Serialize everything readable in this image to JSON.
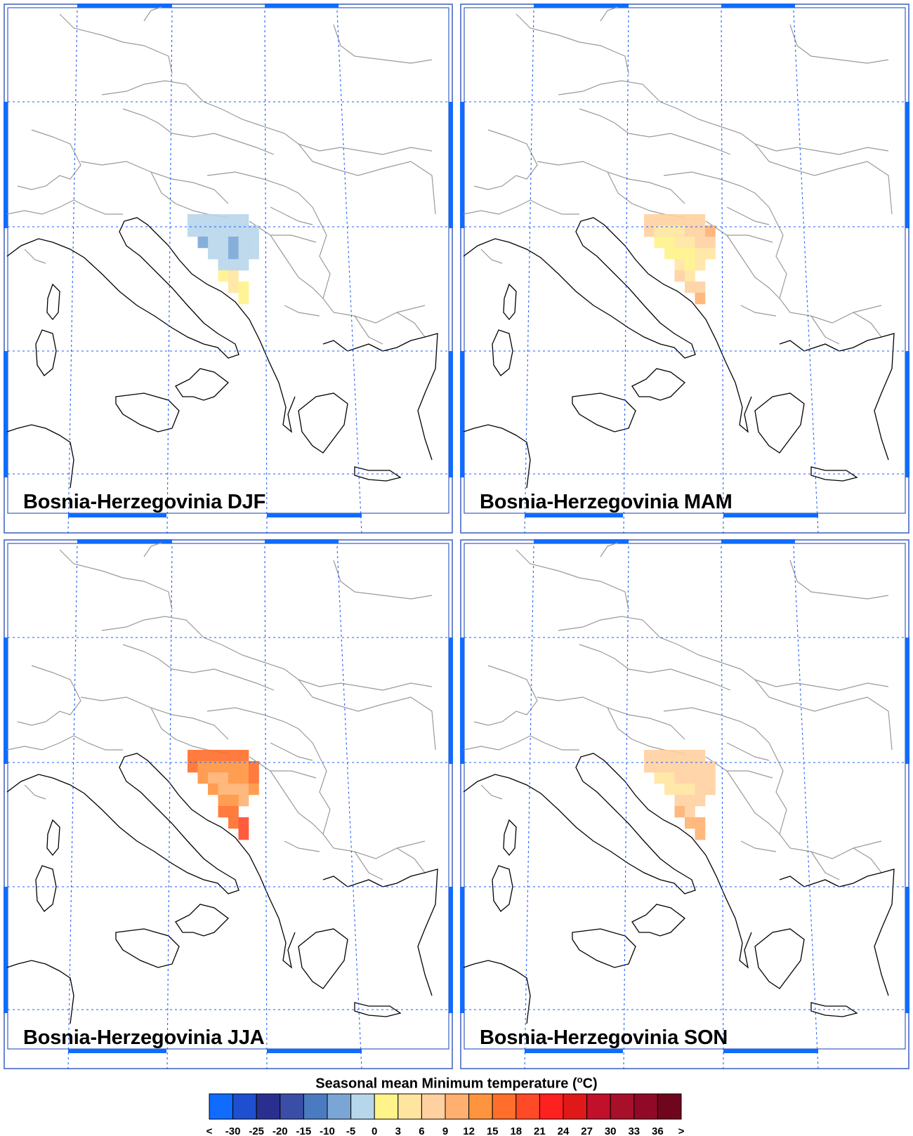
{
  "panels": [
    {
      "label": "Bosnia-Herzegovinia DJF",
      "season": "DJF"
    },
    {
      "label": "Bosnia-Herzegovinia MAM",
      "season": "MAM"
    },
    {
      "label": "Bosnia-Herzegovinia JJA",
      "season": "JJA"
    },
    {
      "label": "Bosnia-Herzegovinia SON",
      "season": "SON"
    }
  ],
  "colorbar": {
    "title_prefix": "Seasonal mean Minimum temperature (",
    "title_unit_sup": "o",
    "title_suffix": "C)",
    "tick_labels": [
      "<",
      "-30",
      "-25",
      "-20",
      "-15",
      "-10",
      "-5",
      "0",
      "3",
      "6",
      "9",
      "12",
      "15",
      "18",
      "21",
      "24",
      "27",
      "30",
      "33",
      "36",
      ">"
    ],
    "colors": [
      "#0f6cff",
      "#1e4fcf",
      "#2a2f8f",
      "#3a4ea8",
      "#4a7bc0",
      "#7aa6d6",
      "#b7d6ea",
      "#fff38a",
      "#ffe5a0",
      "#ffd0a0",
      "#ffb070",
      "#ff9440",
      "#ff6e2a",
      "#ff4a28",
      "#ff2020",
      "#e01818",
      "#c0102a",
      "#a8102a",
      "#900a28",
      "#70061e"
    ]
  },
  "grid": {
    "color": "#1a5cff",
    "frame_color": "#0f6cff"
  },
  "temperature_cells": {
    "DJF": [
      {
        "c": 0,
        "r": 0,
        "v": -5
      },
      {
        "c": 1,
        "r": 0,
        "v": -5
      },
      {
        "c": 2,
        "r": 0,
        "v": -5
      },
      {
        "c": 3,
        "r": 0,
        "v": -5
      },
      {
        "c": 4,
        "r": 0,
        "v": -5
      },
      {
        "c": 5,
        "r": 0,
        "v": -5
      },
      {
        "c": 0,
        "r": 1,
        "v": -5
      },
      {
        "c": 1,
        "r": 1,
        "v": -5
      },
      {
        "c": 2,
        "r": 1,
        "v": -5
      },
      {
        "c": 3,
        "r": 1,
        "v": -5
      },
      {
        "c": 4,
        "r": 1,
        "v": -5
      },
      {
        "c": 5,
        "r": 1,
        "v": -5
      },
      {
        "c": 6,
        "r": 1,
        "v": -5
      },
      {
        "c": 1,
        "r": 2,
        "v": -10
      },
      {
        "c": 2,
        "r": 2,
        "v": -5
      },
      {
        "c": 3,
        "r": 2,
        "v": -5
      },
      {
        "c": 4,
        "r": 2,
        "v": -10
      },
      {
        "c": 5,
        "r": 2,
        "v": -5
      },
      {
        "c": 6,
        "r": 2,
        "v": -5
      },
      {
        "c": 2,
        "r": 3,
        "v": -5
      },
      {
        "c": 3,
        "r": 3,
        "v": -5
      },
      {
        "c": 4,
        "r": 3,
        "v": -10
      },
      {
        "c": 5,
        "r": 3,
        "v": -5
      },
      {
        "c": 6,
        "r": 3,
        "v": -5
      },
      {
        "c": 3,
        "r": 4,
        "v": -5
      },
      {
        "c": 4,
        "r": 4,
        "v": -5
      },
      {
        "c": 5,
        "r": 4,
        "v": -5
      },
      {
        "c": 3,
        "r": 5,
        "v": 0
      },
      {
        "c": 4,
        "r": 5,
        "v": 3
      },
      {
        "c": 4,
        "r": 6,
        "v": 3
      },
      {
        "c": 5,
        "r": 6,
        "v": 0
      },
      {
        "c": 5,
        "r": 7,
        "v": 0
      }
    ],
    "MAM": [
      {
        "c": 0,
        "r": 0,
        "v": 6
      },
      {
        "c": 1,
        "r": 0,
        "v": 6
      },
      {
        "c": 2,
        "r": 0,
        "v": 6
      },
      {
        "c": 3,
        "r": 0,
        "v": 6
      },
      {
        "c": 4,
        "r": 0,
        "v": 6
      },
      {
        "c": 5,
        "r": 0,
        "v": 6
      },
      {
        "c": 0,
        "r": 1,
        "v": 6
      },
      {
        "c": 1,
        "r": 1,
        "v": 3
      },
      {
        "c": 2,
        "r": 1,
        "v": 3
      },
      {
        "c": 3,
        "r": 1,
        "v": 3
      },
      {
        "c": 4,
        "r": 1,
        "v": 6
      },
      {
        "c": 5,
        "r": 1,
        "v": 6
      },
      {
        "c": 6,
        "r": 1,
        "v": 9
      },
      {
        "c": 1,
        "r": 2,
        "v": 0
      },
      {
        "c": 2,
        "r": 2,
        "v": 0
      },
      {
        "c": 3,
        "r": 2,
        "v": 3
      },
      {
        "c": 4,
        "r": 2,
        "v": 3
      },
      {
        "c": 5,
        "r": 2,
        "v": 6
      },
      {
        "c": 6,
        "r": 2,
        "v": 6
      },
      {
        "c": 2,
        "r": 3,
        "v": 0
      },
      {
        "c": 3,
        "r": 3,
        "v": 0
      },
      {
        "c": 4,
        "r": 3,
        "v": 0
      },
      {
        "c": 5,
        "r": 3,
        "v": 3
      },
      {
        "c": 6,
        "r": 3,
        "v": 3
      },
      {
        "c": 3,
        "r": 4,
        "v": 3
      },
      {
        "c": 4,
        "r": 4,
        "v": 0
      },
      {
        "c": 5,
        "r": 4,
        "v": 3
      },
      {
        "c": 3,
        "r": 5,
        "v": 6
      },
      {
        "c": 4,
        "r": 5,
        "v": 3
      },
      {
        "c": 4,
        "r": 6,
        "v": 6
      },
      {
        "c": 5,
        "r": 6,
        "v": 6
      },
      {
        "c": 5,
        "r": 7,
        "v": 9
      }
    ],
    "JJA": [
      {
        "c": 0,
        "r": 0,
        "v": 15
      },
      {
        "c": 1,
        "r": 0,
        "v": 15
      },
      {
        "c": 2,
        "r": 0,
        "v": 15
      },
      {
        "c": 3,
        "r": 0,
        "v": 15
      },
      {
        "c": 4,
        "r": 0,
        "v": 15
      },
      {
        "c": 5,
        "r": 0,
        "v": 15
      },
      {
        "c": 0,
        "r": 1,
        "v": 15
      },
      {
        "c": 1,
        "r": 1,
        "v": 12
      },
      {
        "c": 2,
        "r": 1,
        "v": 12
      },
      {
        "c": 3,
        "r": 1,
        "v": 12
      },
      {
        "c": 4,
        "r": 1,
        "v": 12
      },
      {
        "c": 5,
        "r": 1,
        "v": 12
      },
      {
        "c": 6,
        "r": 1,
        "v": 15
      },
      {
        "c": 1,
        "r": 2,
        "v": 12
      },
      {
        "c": 2,
        "r": 2,
        "v": 9
      },
      {
        "c": 3,
        "r": 2,
        "v": 9
      },
      {
        "c": 4,
        "r": 2,
        "v": 12
      },
      {
        "c": 5,
        "r": 2,
        "v": 12
      },
      {
        "c": 6,
        "r": 2,
        "v": 15
      },
      {
        "c": 2,
        "r": 3,
        "v": 12
      },
      {
        "c": 3,
        "r": 3,
        "v": 9
      },
      {
        "c": 4,
        "r": 3,
        "v": 9
      },
      {
        "c": 5,
        "r": 3,
        "v": 9
      },
      {
        "c": 6,
        "r": 3,
        "v": 12
      },
      {
        "c": 3,
        "r": 4,
        "v": 12
      },
      {
        "c": 4,
        "r": 4,
        "v": 12
      },
      {
        "c": 5,
        "r": 4,
        "v": 9
      },
      {
        "c": 3,
        "r": 5,
        "v": 15
      },
      {
        "c": 4,
        "r": 5,
        "v": 15
      },
      {
        "c": 4,
        "r": 6,
        "v": 15
      },
      {
        "c": 5,
        "r": 6,
        "v": 18
      },
      {
        "c": 5,
        "r": 7,
        "v": 18
      }
    ],
    "SON": [
      {
        "c": 0,
        "r": 0,
        "v": 6
      },
      {
        "c": 1,
        "r": 0,
        "v": 6
      },
      {
        "c": 2,
        "r": 0,
        "v": 6
      },
      {
        "c": 3,
        "r": 0,
        "v": 6
      },
      {
        "c": 4,
        "r": 0,
        "v": 6
      },
      {
        "c": 5,
        "r": 0,
        "v": 6
      },
      {
        "c": 0,
        "r": 1,
        "v": 6
      },
      {
        "c": 1,
        "r": 1,
        "v": 6
      },
      {
        "c": 2,
        "r": 1,
        "v": 6
      },
      {
        "c": 3,
        "r": 1,
        "v": 6
      },
      {
        "c": 4,
        "r": 1,
        "v": 6
      },
      {
        "c": 5,
        "r": 1,
        "v": 6
      },
      {
        "c": 6,
        "r": 1,
        "v": 6
      },
      {
        "c": 1,
        "r": 2,
        "v": 3
      },
      {
        "c": 2,
        "r": 2,
        "v": 3
      },
      {
        "c": 3,
        "r": 2,
        "v": 6
      },
      {
        "c": 4,
        "r": 2,
        "v": 6
      },
      {
        "c": 5,
        "r": 2,
        "v": 6
      },
      {
        "c": 6,
        "r": 2,
        "v": 6
      },
      {
        "c": 2,
        "r": 3,
        "v": 3
      },
      {
        "c": 3,
        "r": 3,
        "v": 3
      },
      {
        "c": 4,
        "r": 3,
        "v": 3
      },
      {
        "c": 5,
        "r": 3,
        "v": 6
      },
      {
        "c": 6,
        "r": 3,
        "v": 6
      },
      {
        "c": 3,
        "r": 4,
        "v": 6
      },
      {
        "c": 4,
        "r": 4,
        "v": 6
      },
      {
        "c": 5,
        "r": 4,
        "v": 6
      },
      {
        "c": 3,
        "r": 5,
        "v": 9
      },
      {
        "c": 4,
        "r": 5,
        "v": 6
      },
      {
        "c": 4,
        "r": 6,
        "v": 9
      },
      {
        "c": 5,
        "r": 6,
        "v": 9
      },
      {
        "c": 5,
        "r": 7,
        "v": 9
      }
    ]
  }
}
